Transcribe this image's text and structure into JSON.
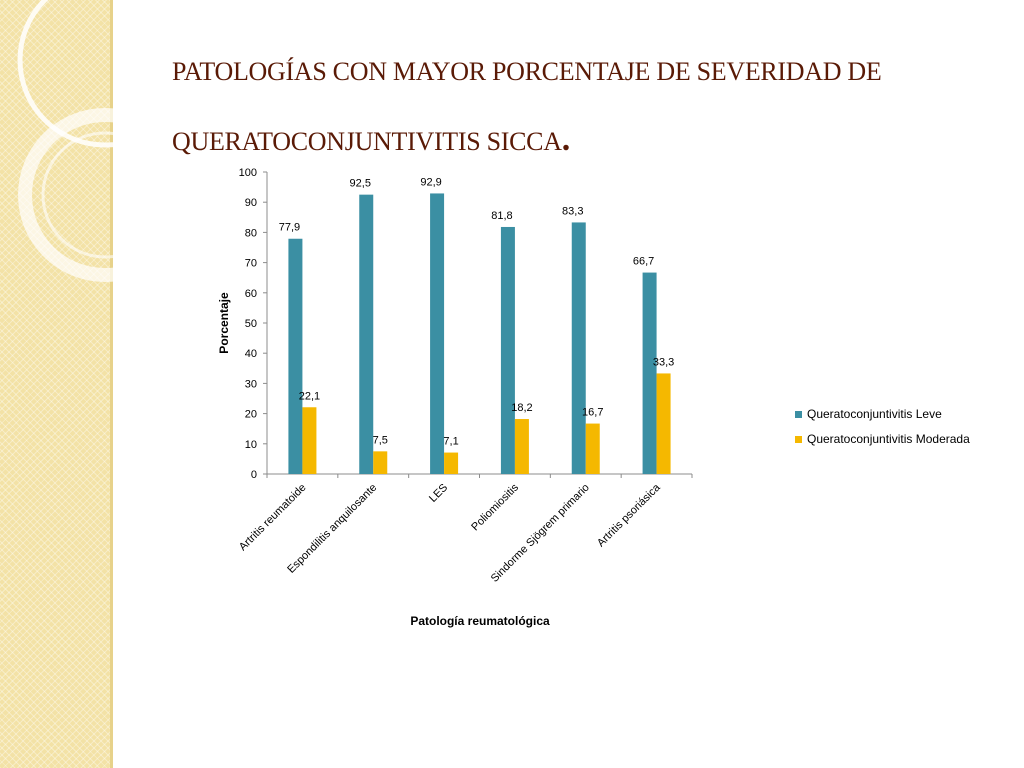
{
  "slide": {
    "title_line1": "PATOLOGÍAS CON MAYOR PORCENTAJE DE SEVERIDAD DE",
    "title_line2": "QUERATOCONJUNTIVITIS SICCA",
    "title_end": "."
  },
  "chart_data": {
    "type": "bar",
    "title": "",
    "xlabel": "Patología reumatológica",
    "ylabel": "Porcentaje",
    "ylim": [
      0,
      100
    ],
    "yticks": [
      "0",
      "10",
      "20",
      "30",
      "40",
      "50",
      "60",
      "70",
      "80",
      "90",
      "100"
    ],
    "grid": false,
    "legend_position": "right",
    "categories": [
      "Artritis reumatoide",
      "Espondilitis anquilosante",
      "LES",
      "Poliomiositis",
      "Sindorme Sjögrem primario",
      "Artritis psoriásica"
    ],
    "series": [
      {
        "name": "Queratoconjuntivitis Leve",
        "color": "#3b8fa3",
        "values": [
          77.9,
          92.5,
          92.9,
          81.8,
          83.3,
          66.7
        ],
        "labels": [
          "77,9",
          "92,5",
          "92,9",
          "81,8",
          "83,3",
          "66,7"
        ]
      },
      {
        "name": "Queratoconjuntivitis Moderada",
        "color": "#f5b800",
        "values": [
          22.1,
          7.5,
          7.1,
          18.2,
          16.7,
          33.3
        ],
        "labels": [
          "22,1",
          "7,5",
          "7,1",
          "18,2",
          "16,7",
          "33,3"
        ]
      }
    ]
  }
}
